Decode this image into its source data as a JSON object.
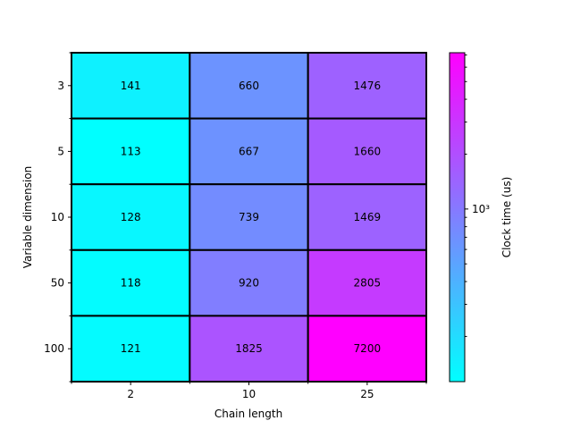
{
  "chart_data": {
    "type": "heatmap",
    "title": "",
    "xlabel": "Chain length",
    "ylabel": "Variable dimension",
    "x_categories": [
      "2",
      "10",
      "25"
    ],
    "y_categories": [
      "3",
      "5",
      "10",
      "50",
      "100"
    ],
    "values": [
      [
        141,
        660,
        1476
      ],
      [
        113,
        667,
        1660
      ],
      [
        128,
        739,
        1469
      ],
      [
        118,
        920,
        2805
      ],
      [
        121,
        1825,
        7200
      ]
    ],
    "colormap": "cool",
    "color_scale": "log",
    "color_range": [
      113,
      7200
    ],
    "colorbar": {
      "label": "Clock time (us)",
      "tick_label": "10³",
      "tick_value": 1000
    },
    "cell_border_color": "#000000",
    "annotations": "cell values printed in each cell"
  }
}
